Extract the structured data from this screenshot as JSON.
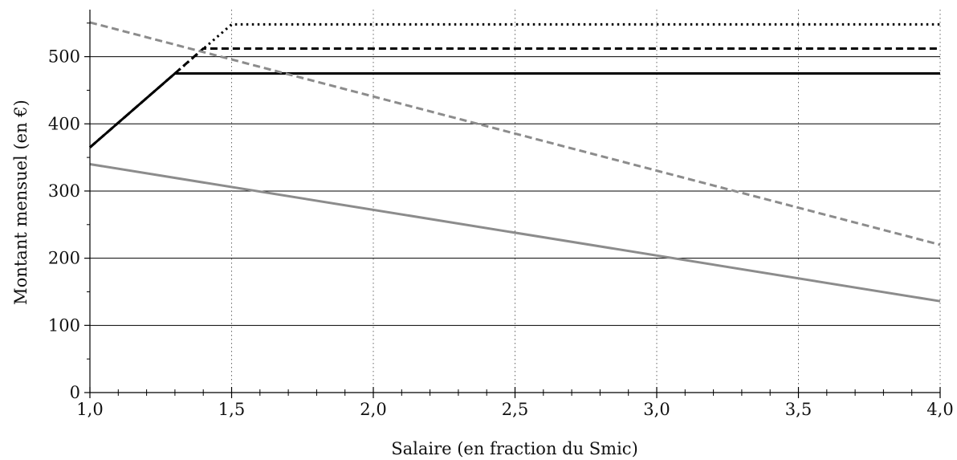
{
  "chart_data": {
    "type": "line",
    "xlabel": "Salaire (en fraction du Smic)",
    "ylabel": "Montant mensuel (en €)",
    "xlim": [
      1.0,
      4.0
    ],
    "ylim": [
      0,
      570
    ],
    "x_ticks": [
      1.0,
      1.5,
      2.0,
      2.5,
      3.0,
      3.5,
      4.0
    ],
    "x_tick_labels": [
      "1,0",
      "1,5",
      "2,0",
      "2,5",
      "3,0",
      "3,5",
      "4,0"
    ],
    "y_ticks": [
      0,
      100,
      200,
      300,
      400,
      500
    ],
    "y_tick_labels": [
      "0",
      "100",
      "200",
      "300",
      "400",
      "500"
    ],
    "grid": {
      "horizontal": "solid",
      "vertical": "dotted"
    },
    "series": [
      {
        "style": "dotted",
        "color": "#000000",
        "x": [
          1.0,
          1.3,
          1.5,
          4.0
        ],
        "y": [
          365,
          475,
          548,
          548
        ]
      },
      {
        "style": "dashed",
        "color": "#000000",
        "x": [
          1.0,
          1.3,
          1.4,
          4.0
        ],
        "y": [
          365,
          475,
          512,
          512
        ]
      },
      {
        "style": "solid",
        "color": "#000000",
        "x": [
          1.0,
          1.3,
          4.0
        ],
        "y": [
          365,
          475,
          475
        ]
      },
      {
        "style": "dashed",
        "color": "#8c8c8c",
        "x": [
          1.0,
          4.0
        ],
        "y": [
          551,
          220
        ]
      },
      {
        "style": "solid",
        "color": "#8c8c8c",
        "x": [
          1.0,
          4.0
        ],
        "y": [
          340,
          136
        ]
      }
    ]
  }
}
